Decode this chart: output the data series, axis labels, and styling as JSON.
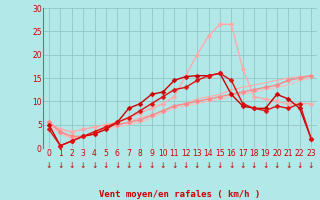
{
  "background_color": "#b2e8e8",
  "grid_color": "#90c8c8",
  "xlabel": "Vent moyen/en rafales ( km/h )",
  "tick_color": "#cc0000",
  "xlim": [
    -0.5,
    23.5
  ],
  "ylim": [
    0,
    30
  ],
  "yticks": [
    0,
    5,
    10,
    15,
    20,
    25,
    30
  ],
  "xticks": [
    0,
    1,
    2,
    3,
    4,
    5,
    6,
    7,
    8,
    9,
    10,
    11,
    12,
    13,
    14,
    15,
    16,
    17,
    18,
    19,
    20,
    21,
    22,
    23
  ],
  "series": [
    {
      "x": [
        0,
        1,
        2,
        3,
        4,
        5,
        6,
        7,
        8,
        9,
        10,
        11,
        12,
        13,
        14,
        15,
        16,
        17,
        18,
        19,
        20,
        21,
        22,
        23
      ],
      "y": [
        5.5,
        3.5,
        2.0,
        2.5,
        3.0,
        4.5,
        5.0,
        5.5,
        6.5,
        7.0,
        8.0,
        9.0,
        9.5,
        10.5,
        11.0,
        11.5,
        12.5,
        13.0,
        13.5,
        14.0,
        14.5,
        15.0,
        15.3,
        15.5
      ],
      "color": "#ffaaaa",
      "linewidth": 0.8,
      "marker": null,
      "markersize": 0,
      "zorder": 2
    },
    {
      "x": [
        0,
        1,
        2,
        3,
        4,
        5,
        6,
        7,
        8,
        9,
        10,
        11,
        12,
        13,
        14,
        15,
        16,
        17,
        18,
        19,
        20,
        21,
        22,
        23
      ],
      "y": [
        5.0,
        3.0,
        2.0,
        2.5,
        3.5,
        4.0,
        4.5,
        5.0,
        5.5,
        6.5,
        7.5,
        8.5,
        9.0,
        9.5,
        10.0,
        10.5,
        11.0,
        11.5,
        12.0,
        12.5,
        13.0,
        13.5,
        14.5,
        15.0
      ],
      "color": "#ffbbbb",
      "linewidth": 0.8,
      "marker": null,
      "markersize": 0,
      "zorder": 2
    },
    {
      "x": [
        0,
        1,
        2,
        3,
        4,
        5,
        6,
        7,
        8,
        9,
        10,
        11,
        12,
        13,
        14,
        15,
        16,
        17,
        18,
        19,
        20,
        21,
        22,
        23
      ],
      "y": [
        5.5,
        4.0,
        3.5,
        4.0,
        4.5,
        5.0,
        5.5,
        6.5,
        7.5,
        8.5,
        9.5,
        11.0,
        15.5,
        20.0,
        24.0,
        26.5,
        26.5,
        17.0,
        11.0,
        10.5,
        10.0,
        9.5,
        9.5,
        9.5
      ],
      "color": "#ffaaaa",
      "linewidth": 1.0,
      "marker": "D",
      "markersize": 2.5,
      "zorder": 3
    },
    {
      "x": [
        0,
        1,
        2,
        3,
        4,
        5,
        6,
        7,
        8,
        9,
        10,
        11,
        12,
        13,
        14,
        15,
        16,
        17,
        18,
        19,
        20,
        21,
        22,
        23
      ],
      "y": [
        5.5,
        3.5,
        2.5,
        2.5,
        3.0,
        4.5,
        5.0,
        5.5,
        6.0,
        7.0,
        8.0,
        9.0,
        9.5,
        10.0,
        10.5,
        11.0,
        11.5,
        12.0,
        12.5,
        13.0,
        13.5,
        14.5,
        15.0,
        15.5
      ],
      "color": "#ff8888",
      "linewidth": 1.0,
      "marker": "D",
      "markersize": 2.5,
      "zorder": 3
    },
    {
      "x": [
        0,
        1,
        2,
        3,
        4,
        5,
        6,
        7,
        8,
        9,
        10,
        11,
        12,
        13,
        14,
        15,
        16,
        17,
        18,
        19,
        20,
        21,
        22,
        23
      ],
      "y": [
        5.0,
        0.5,
        1.5,
        2.5,
        3.0,
        4.0,
        5.5,
        8.5,
        9.5,
        11.5,
        12.0,
        14.5,
        15.3,
        15.5,
        15.5,
        16.0,
        11.5,
        9.0,
        8.5,
        8.5,
        11.5,
        10.5,
        8.5,
        2.0
      ],
      "color": "#cc0000",
      "linewidth": 1.0,
      "marker": "D",
      "markersize": 2.5,
      "zorder": 4
    },
    {
      "x": [
        0,
        1,
        2,
        3,
        4,
        5,
        6,
        7,
        8,
        9,
        10,
        11,
        12,
        13,
        14,
        15,
        16,
        17,
        18,
        19,
        20,
        21,
        22,
        23
      ],
      "y": [
        4.0,
        0.5,
        1.5,
        2.5,
        3.5,
        4.5,
        5.5,
        6.5,
        8.0,
        9.5,
        11.0,
        12.5,
        13.0,
        14.5,
        15.5,
        16.0,
        14.5,
        9.5,
        8.5,
        8.0,
        9.0,
        8.5,
        9.5,
        2.0
      ],
      "color": "#dd1111",
      "linewidth": 1.0,
      "marker": "D",
      "markersize": 2.5,
      "zorder": 4
    }
  ],
  "arrow_color": "#cc0000",
  "arrow_fontsize": 5.5
}
